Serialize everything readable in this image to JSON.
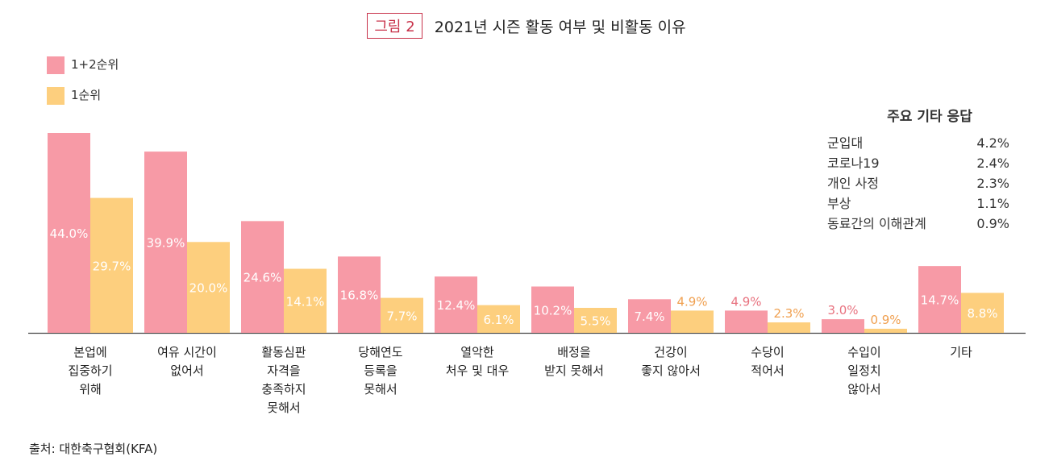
{
  "figure": {
    "label": "그림 2",
    "title": "2021년 시즌 활동 여부 및 비활동 이유"
  },
  "legend": [
    {
      "name": "1+2순위",
      "color": "#f79aa6"
    },
    {
      "name": "1순위",
      "color": "#fdcf7e"
    }
  ],
  "other_responses": {
    "title": "주요 기타 응답",
    "items": [
      {
        "label": "군입대",
        "value": "4.2%"
      },
      {
        "label": "코로나19",
        "value": "2.4%"
      },
      {
        "label": "개인 사정",
        "value": "2.3%"
      },
      {
        "label": "부상",
        "value": "1.1%"
      },
      {
        "label": "동료간의 이해관계",
        "value": "0.9%"
      }
    ]
  },
  "source": "출처: 대한축구협회(KFA)",
  "chart_data": {
    "type": "bar",
    "categories": [
      "본업에\n집중하기\n위해",
      "여유 시간이\n없어서",
      "활동심판\n자격을\n충족하지\n못해서",
      "당해연도\n등록을\n못해서",
      "열악한\n처우 및 대우",
      "배정을\n받지 못해서",
      "건강이\n좋지 않아서",
      "수당이\n적어서",
      "수입이\n일정치\n않아서",
      "기타"
    ],
    "series": [
      {
        "name": "1+2순위",
        "values": [
          44.0,
          39.9,
          24.6,
          16.8,
          12.4,
          10.2,
          7.4,
          4.9,
          3.0,
          14.7
        ],
        "labels": [
          "44.0%",
          "39.9%",
          "24.6%",
          "16.8%",
          "12.4%",
          "10.2%",
          "7.4%",
          "4.9%",
          "3.0%",
          "14.7%"
        ]
      },
      {
        "name": "1순위",
        "values": [
          29.7,
          20.0,
          14.1,
          7.7,
          6.1,
          5.5,
          4.9,
          2.3,
          0.9,
          8.8
        ],
        "labels": [
          "29.7%",
          "20.0%",
          "14.1%",
          "7.7%",
          "6.1%",
          "5.5%",
          "4.9%",
          "2.3%",
          "0.9%",
          "8.8%"
        ]
      }
    ],
    "colors": [
      "#f79aa6",
      "#fdcf7e"
    ],
    "label_colors_outside": [
      "#e8727f",
      "#f0a050"
    ],
    "ylim": [
      0,
      45
    ],
    "grid": false,
    "legend_position": "top-left"
  }
}
